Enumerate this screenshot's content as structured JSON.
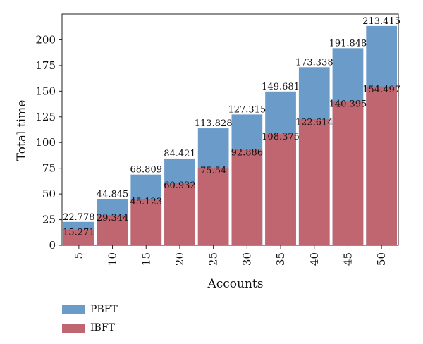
{
  "chart_data": {
    "type": "bar",
    "stacked": "overlay",
    "categories": [
      "5",
      "10",
      "15",
      "20",
      "25",
      "30",
      "35",
      "40",
      "45",
      "50"
    ],
    "series": [
      {
        "name": "PBFT",
        "color": "#6b9bc9",
        "values": [
          22.778,
          44.845,
          68.809,
          84.421,
          113.828,
          127.315,
          149.681,
          173.338,
          191.848,
          213.415
        ],
        "labels": [
          "22.778",
          "44.845",
          "68.809",
          "84.421",
          "113.828",
          "127.315",
          "149.681",
          "173.338",
          "191.848",
          "213.415"
        ]
      },
      {
        "name": "IBFT",
        "color": "#bf6670",
        "values": [
          15.271,
          29.344,
          45.123,
          60.932,
          75.54,
          92.886,
          108.375,
          122.614,
          140.395,
          154.497
        ],
        "labels": [
          "15.271",
          "29.344",
          "45.123",
          "60.932",
          "75.54",
          "92.886",
          "108.375",
          "122.614",
          "140.395",
          "154.497"
        ]
      }
    ],
    "xlabel": "Accounts",
    "ylabel": "Total time",
    "ylim": [
      0,
      225
    ],
    "yticks": [
      0,
      25,
      50,
      75,
      100,
      125,
      150,
      175,
      200
    ],
    "ytick_labels": [
      "0",
      "25",
      "50",
      "75",
      "100",
      "125",
      "150",
      "175",
      "200"
    ],
    "grid": false,
    "legend_position": "bottom-left"
  }
}
